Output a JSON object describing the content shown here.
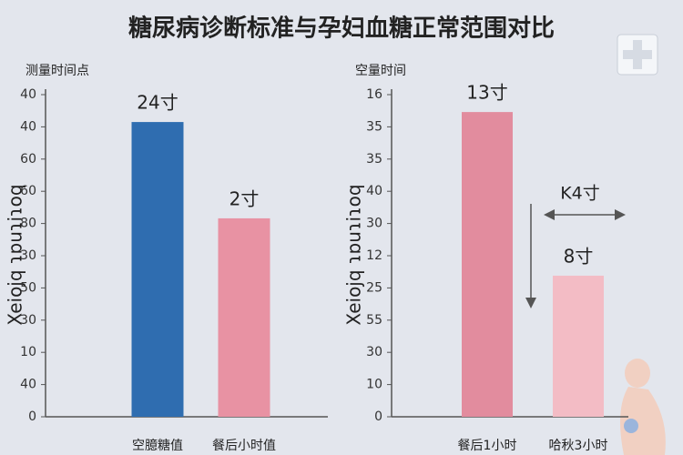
{
  "title": "糖尿病诊断标准与孕妇血糖正常范围对比",
  "chart_data": [
    {
      "type": "bar",
      "subtitle": "测量时间点",
      "ylabel": "Xeiojq ɿɒuɿiɿoq",
      "categories": [
        "空臆糖值",
        "餐后小时值"
      ],
      "values": [
        9.15,
        6.16
      ],
      "value_labels": [
        "24寸",
        "2寸"
      ],
      "colors": [
        "#2f6db0",
        "#e892a3"
      ],
      "label_colors": [
        "#2f6db0",
        "#d9677e"
      ],
      "ylim": [
        0,
        10
      ],
      "yticks": [
        {
          "value": 0,
          "label": "0"
        },
        {
          "value": 1,
          "label": "40"
        },
        {
          "value": 2,
          "label": "10"
        },
        {
          "value": 3,
          "label": "30"
        },
        {
          "value": 4,
          "label": "50"
        },
        {
          "value": 5,
          "label": "30"
        },
        {
          "value": 6,
          "label": "80"
        },
        {
          "value": 7,
          "label": "60"
        },
        {
          "value": 8,
          "label": "60"
        },
        {
          "value": 9,
          "label": "40"
        },
        {
          "value": 10,
          "label": "40"
        }
      ]
    },
    {
      "type": "bar",
      "subtitle": "空量时间",
      "ylabel": "Xeiojq ɿɒuɿiɿoq",
      "categories": [
        "餐后1小时",
        "哈秋3小时"
      ],
      "values": [
        9.46,
        4.38
      ],
      "value_labels": [
        "13寸",
        "8寸"
      ],
      "colors": [
        "#e28c9e",
        "#f3bcc5"
      ],
      "label_colors": [
        "#d9677e",
        "#d9677e"
      ],
      "annotation": "K4寸",
      "ylim": [
        0,
        10
      ],
      "yticks": [
        {
          "value": 0,
          "label": "0"
        },
        {
          "value": 1,
          "label": "10"
        },
        {
          "value": 2,
          "label": "30"
        },
        {
          "value": 3,
          "label": "55"
        },
        {
          "value": 4,
          "label": "25"
        },
        {
          "value": 5,
          "label": "12"
        },
        {
          "value": 6,
          "label": "30"
        },
        {
          "value": 7,
          "label": "40"
        },
        {
          "value": 8,
          "label": "35"
        },
        {
          "value": 9,
          "label": "35"
        },
        {
          "value": 10,
          "label": "16"
        }
      ]
    }
  ]
}
